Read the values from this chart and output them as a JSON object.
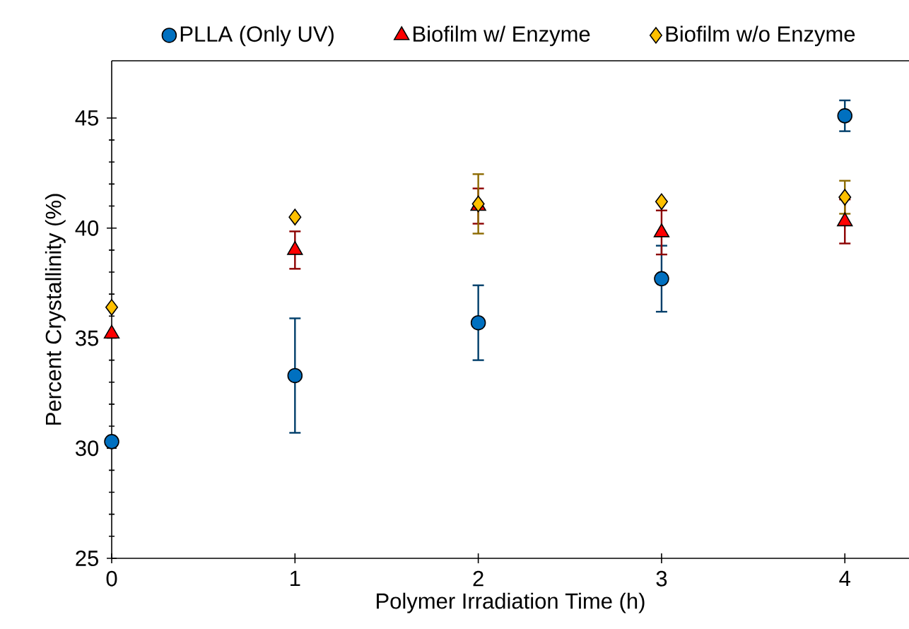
{
  "chart_data": {
    "type": "scatter",
    "xlabel": "Polymer Irradiation Time (h)",
    "ylabel": "Percent Crystallinity (%)",
    "x": [
      0,
      1,
      2,
      3,
      4
    ],
    "xlim": [
      0,
      4.35
    ],
    "ylim": [
      25,
      47.6
    ],
    "xticks": [
      0,
      1,
      2,
      3,
      4
    ],
    "yticks": [
      25,
      30,
      35,
      40,
      45
    ],
    "legend": "top",
    "grid": false,
    "series": [
      {
        "name": "PLLA (Only UV)",
        "color": "#0070c0",
        "marker": "circle",
        "values": [
          30.3,
          33.3,
          35.7,
          37.7,
          45.1
        ],
        "errors": [
          null,
          2.6,
          1.7,
          1.5,
          0.7
        ]
      },
      {
        "name": "Biofilm w/ Enzyme",
        "color": "#ff0000",
        "marker": "triangle",
        "values": [
          35.2,
          39.0,
          41.0,
          39.8,
          40.3
        ],
        "errors": [
          null,
          0.85,
          0.8,
          1.0,
          1.0
        ]
      },
      {
        "name": "Biofilm w/o Enzyme",
        "color": "#ffc000",
        "marker": "diamond",
        "values": [
          36.4,
          40.5,
          41.1,
          41.2,
          41.4
        ],
        "errors": [
          null,
          null,
          1.35,
          null,
          0.75
        ]
      }
    ]
  }
}
